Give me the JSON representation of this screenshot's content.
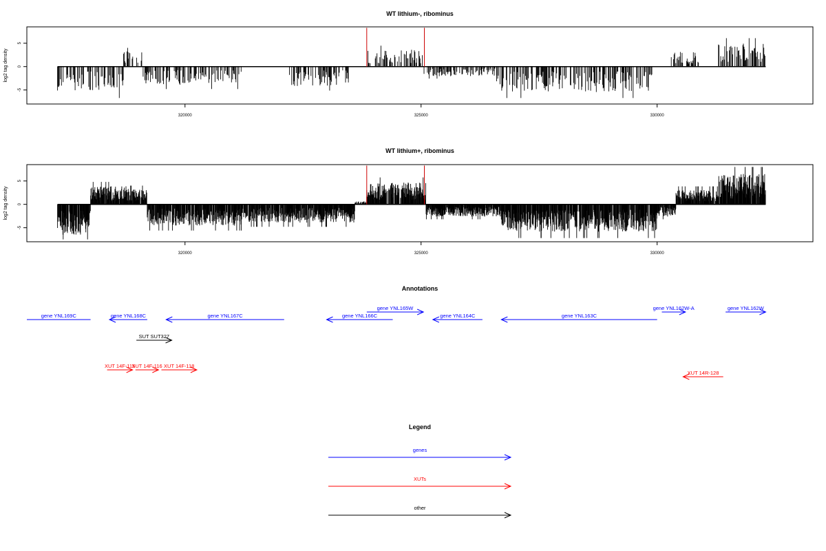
{
  "chart_data": [
    {
      "type": "bar",
      "title": "WT lithium-, ribominus",
      "ylabel": "log2 tag density",
      "xlim": [
        316650,
        333300
      ],
      "ylim": [
        -8,
        8.5
      ],
      "x_ticks": [
        320000,
        325000,
        330000
      ],
      "y_ticks": [
        -5,
        0,
        5
      ],
      "data_start": 317300,
      "data_end": 332300,
      "markers": [
        {
          "x": 323850,
          "value": 8.3,
          "color": "#cc0000"
        },
        {
          "x": 325070,
          "value": 8.3,
          "color": "#cc0000"
        }
      ],
      "regions": [
        {
          "from": 317300,
          "to": 318700,
          "level": -4.2
        },
        {
          "from": 318700,
          "to": 319100,
          "level": 2.5
        },
        {
          "from": 319100,
          "to": 321200,
          "level": -3.0
        },
        {
          "from": 321200,
          "to": 322200,
          "level": 0.0
        },
        {
          "from": 322200,
          "to": 323500,
          "level": -3.2
        },
        {
          "from": 323500,
          "to": 323850,
          "level": 0.0
        },
        {
          "from": 323850,
          "to": 325050,
          "level": 2.8
        },
        {
          "from": 325050,
          "to": 326600,
          "level": -1.6
        },
        {
          "from": 326600,
          "to": 329900,
          "level": -4.2
        },
        {
          "from": 329900,
          "to": 330300,
          "level": 0.0
        },
        {
          "from": 330300,
          "to": 330900,
          "level": 2.5
        },
        {
          "from": 330900,
          "to": 331300,
          "level": 0.0
        },
        {
          "from": 331300,
          "to": 332300,
          "level": 3.8
        }
      ]
    },
    {
      "type": "bar",
      "title": "WT lithium+, ribominus",
      "ylabel": "log2 tag density",
      "xlim": [
        316650,
        333300
      ],
      "ylim": [
        -8,
        8.5
      ],
      "x_ticks": [
        320000,
        325000,
        330000
      ],
      "y_ticks": [
        -5,
        0,
        5
      ],
      "data_start": 317300,
      "data_end": 332300,
      "markers": [
        {
          "x": 323850,
          "value": 8.3,
          "color": "#cc0000"
        },
        {
          "x": 325070,
          "value": 8.3,
          "color": "#cc0000"
        }
      ],
      "regions": [
        {
          "from": 317300,
          "to": 318000,
          "level": -5.0
        },
        {
          "from": 318000,
          "to": 318800,
          "level": 3.0
        },
        {
          "from": 318800,
          "to": 319200,
          "level": 2.5
        },
        {
          "from": 319200,
          "to": 321200,
          "level": -3.5
        },
        {
          "from": 321200,
          "to": 323600,
          "level": -3.0
        },
        {
          "from": 323600,
          "to": 323850,
          "level": 0.5
        },
        {
          "from": 323850,
          "to": 325100,
          "level": 3.6
        },
        {
          "from": 325100,
          "to": 326700,
          "level": -2.0
        },
        {
          "from": 326700,
          "to": 330000,
          "level": -4.5
        },
        {
          "from": 330000,
          "to": 330400,
          "level": -2.0
        },
        {
          "from": 330400,
          "to": 331300,
          "level": 2.4
        },
        {
          "from": 331300,
          "to": 332300,
          "level": 5.0
        }
      ]
    }
  ],
  "annotations": {
    "title": "Annotations",
    "features": [
      {
        "label": "gene YNL169C",
        "kind": "gene",
        "strand": "none",
        "from": 316650,
        "to": 318000,
        "row": 1
      },
      {
        "label": "gene YNL168C",
        "kind": "gene",
        "strand": "-",
        "from": 318400,
        "to": 319200,
        "row": 1
      },
      {
        "label": "gene YNL167C",
        "kind": "gene",
        "strand": "-",
        "from": 319600,
        "to": 322100,
        "row": 1
      },
      {
        "label": "gene YNL166C",
        "kind": "gene",
        "strand": "-",
        "from": 323000,
        "to": 324400,
        "row": 1
      },
      {
        "label": "gene YNL165W",
        "kind": "gene",
        "strand": "+",
        "from": 323850,
        "to": 325050,
        "row": 0
      },
      {
        "label": "gene YNL164C",
        "kind": "gene",
        "strand": "-",
        "from": 325250,
        "to": 326300,
        "row": 1
      },
      {
        "label": "gene YNL163C",
        "kind": "gene",
        "strand": "-",
        "from": 326700,
        "to": 330000,
        "row": 1
      },
      {
        "label": "gene YNL162W-A",
        "kind": "gene",
        "strand": "+",
        "from": 330100,
        "to": 330600,
        "row": 0
      },
      {
        "label": "gene YNL162W",
        "kind": "gene",
        "strand": "+",
        "from": 331450,
        "to": 332300,
        "row": 0
      },
      {
        "label": "SUT SUT327",
        "kind": "other",
        "strand": "+",
        "from": 318970,
        "to": 319720,
        "row": 2
      },
      {
        "label": "XUT 14F-115",
        "kind": "xut",
        "strand": "+",
        "from": 318350,
        "to": 318890,
        "row": 3
      },
      {
        "label": "XUT 14F-116",
        "kind": "xut",
        "strand": "+",
        "from": 318950,
        "to": 319440,
        "row": 3
      },
      {
        "label": "XUT 14F-118",
        "kind": "xut",
        "strand": "+",
        "from": 319500,
        "to": 320250,
        "row": 3
      },
      {
        "label": "XUT 14R-128",
        "kind": "xut",
        "strand": "-",
        "from": 330550,
        "to": 331400,
        "row": 4
      }
    ]
  },
  "legend": {
    "title": "Legend",
    "items": [
      {
        "label": "genes",
        "color": "#0000ff"
      },
      {
        "label": "XUTs",
        "color": "#ff0000"
      },
      {
        "label": "other",
        "color": "#000000"
      }
    ]
  },
  "colors": {
    "gene": "#0000ff",
    "xut": "#ff0000",
    "other": "#000000",
    "signal": "#000000",
    "marker": "#cc0000"
  }
}
